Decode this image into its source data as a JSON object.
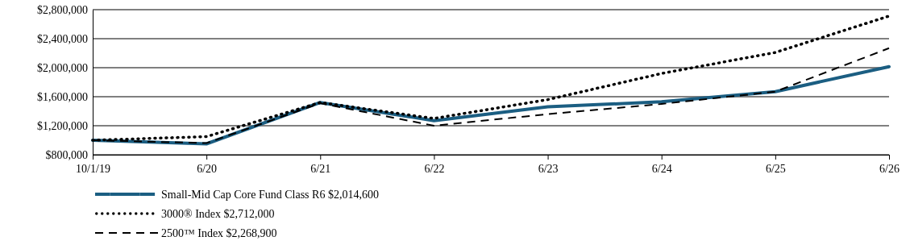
{
  "chart_data": {
    "type": "line",
    "categories": [
      "10/1/19",
      "6/20",
      "6/21",
      "6/22",
      "6/23",
      "6/24",
      "6/25",
      "6/26"
    ],
    "series": [
      {
        "name": "Small-Mid Cap Core Fund Class R6 $2,014,600",
        "color": "#1b5e82",
        "line_style": "solid",
        "values": [
          1000000,
          950000,
          1520000,
          1270000,
          1460000,
          1530000,
          1670000,
          2014600
        ]
      },
      {
        "name": "3000® Index $2,712,000",
        "color": "#000000",
        "line_style": "dotted",
        "values": [
          1000000,
          1050000,
          1520000,
          1300000,
          1560000,
          1920000,
          2210000,
          2712000
        ]
      },
      {
        "name": "2500™ Index $2,268,900",
        "color": "#000000",
        "line_style": "dashed",
        "values": [
          1000000,
          960000,
          1510000,
          1200000,
          1360000,
          1500000,
          1670000,
          2268900
        ]
      }
    ],
    "ylim": [
      800000,
      2800000
    ],
    "yticks": [
      {
        "value": 800000,
        "label": "$800,000"
      },
      {
        "value": 1200000,
        "label": "$1,200,000"
      },
      {
        "value": 1600000,
        "label": "$1,600,000"
      },
      {
        "value": 2000000,
        "label": "$2,000,000"
      },
      {
        "value": 2400000,
        "label": "$2,400,000"
      },
      {
        "value": 2800000,
        "label": "$2,800,000"
      }
    ],
    "grid": "y",
    "legend": "bottom left",
    "marker": "none"
  }
}
